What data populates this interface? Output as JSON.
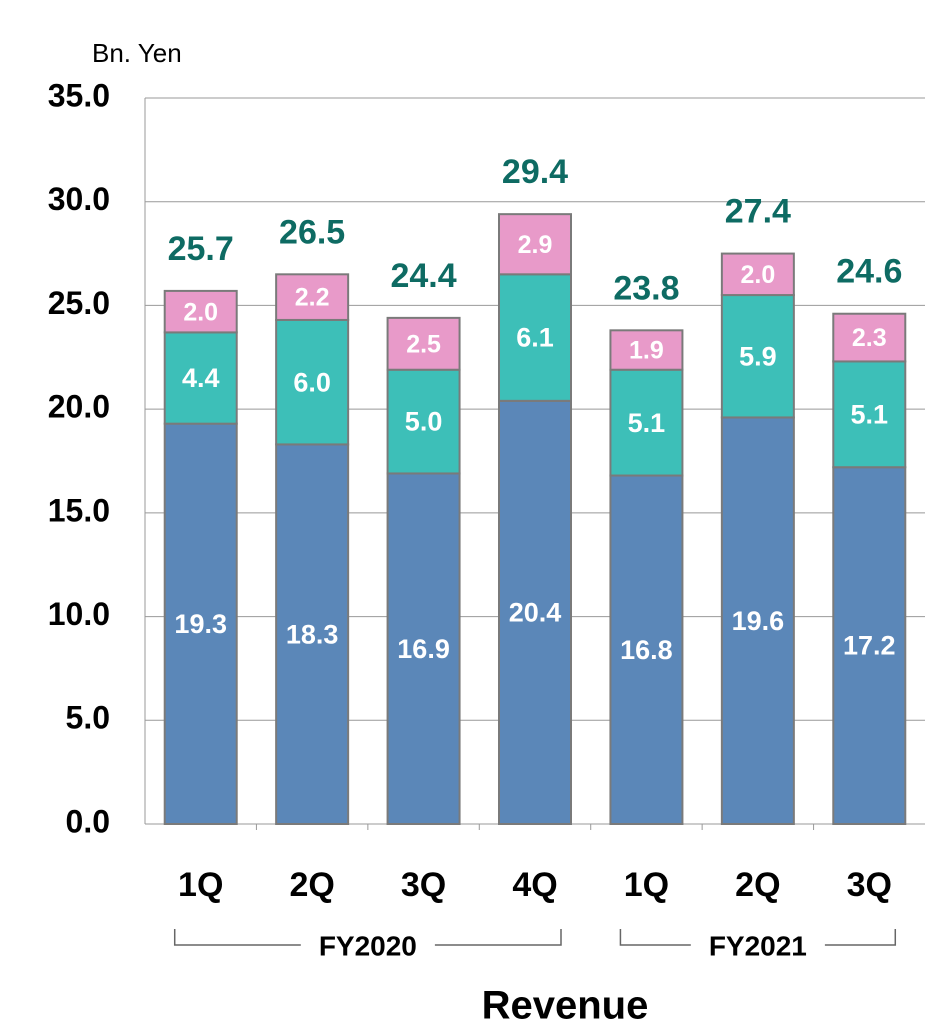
{
  "chart_data": {
    "type": "stacked_bar",
    "y_axis_label": "Bn. Yen",
    "x_axis_label": "Revenue",
    "categories": [
      "1Q",
      "2Q",
      "3Q",
      "4Q",
      "1Q",
      "2Q",
      "3Q"
    ],
    "groups": [
      {
        "label": "FY2020",
        "count": 4
      },
      {
        "label": "FY2021",
        "count": 3
      }
    ],
    "series": [
      {
        "color": "#5b87b8",
        "values": [
          19.3,
          18.3,
          16.9,
          20.4,
          16.8,
          19.6,
          17.2
        ],
        "value_labels": [
          "19.3",
          "18.3",
          "16.9",
          "20.4",
          "16.8",
          "19.6",
          "17.2"
        ]
      },
      {
        "color": "#3dbfb8",
        "values": [
          4.4,
          6.0,
          5.0,
          6.1,
          5.1,
          5.9,
          5.1
        ],
        "value_labels": [
          "4.4",
          "6.0",
          "5.0",
          "6.1",
          "5.1",
          "5.9",
          "5.1"
        ]
      },
      {
        "color": "#e89ac9",
        "values": [
          2.0,
          2.2,
          2.5,
          2.9,
          1.9,
          2.0,
          2.3
        ],
        "value_labels": [
          "2.0",
          "2.2",
          "2.5",
          "2.9",
          "1.9",
          "2.0",
          "2.3"
        ]
      }
    ],
    "totals": {
      "color": "#0e6b63",
      "values": [
        25.7,
        26.5,
        24.4,
        29.4,
        23.8,
        27.4,
        24.6
      ]
    },
    "ylim": [
      0,
      35
    ],
    "yticks": [
      {
        "value": 0,
        "label": "0.0"
      },
      {
        "value": 5,
        "label": "5.0"
      },
      {
        "value": 10,
        "label": "10.0"
      },
      {
        "value": 15,
        "label": "15.0"
      },
      {
        "value": 20,
        "label": "20.0"
      },
      {
        "value": 25,
        "label": "25.0"
      },
      {
        "value": 30,
        "label": "30.0"
      },
      {
        "value": 35,
        "label": "35.0"
      }
    ],
    "grid": true
  }
}
